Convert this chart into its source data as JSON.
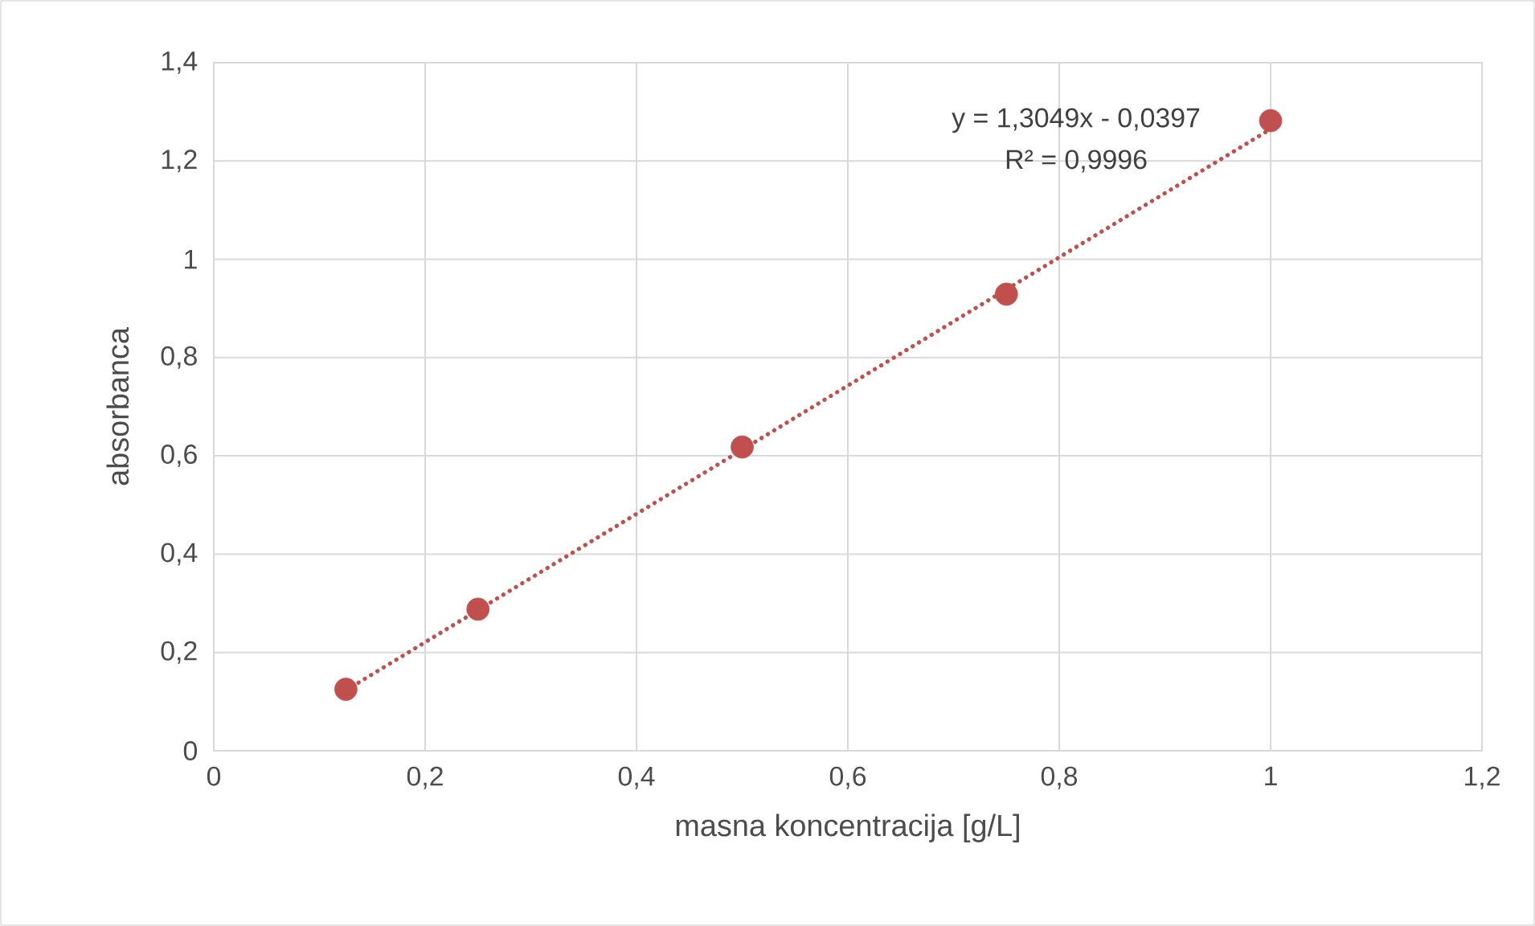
{
  "chart_data": {
    "type": "scatter",
    "xlabel": "masna koncentracija [g/L]",
    "ylabel": "absorbanca",
    "series": [
      {
        "color": "#c0504d",
        "marker": "circle",
        "x": [
          0.125,
          0.25,
          0.5,
          0.75,
          1.0
        ],
        "values": [
          0.125,
          0.288,
          0.618,
          0.929,
          1.282
        ]
      },
      {
        "type": "line",
        "color": "#c0504d",
        "marker": "none",
        "line_style": "dotted",
        "x": [
          0.125,
          1.0
        ],
        "values": [
          0.123,
          1.265
        ]
      }
    ],
    "annotations": [
      "y = 1,3049x - 0,0397",
      "R² = 0,9996"
    ],
    "xlim": [
      0,
      1.2
    ],
    "ylim": [
      0,
      1.4
    ],
    "xticks": [
      0,
      {
        "value": 0.2,
        "label": "0,2"
      },
      {
        "value": 0.4,
        "label": "0,4"
      },
      {
        "value": 0.6,
        "label": "0,6"
      },
      {
        "value": 0.8,
        "label": "0,8"
      },
      1,
      {
        "value": 1.2,
        "label": "1,2"
      }
    ],
    "yticks": [
      0,
      {
        "value": 0.2,
        "label": "0,2"
      },
      {
        "value": 0.4,
        "label": "0,4"
      },
      {
        "value": 0.6,
        "label": "0,6"
      },
      {
        "value": 0.8,
        "label": "0,8"
      },
      1,
      {
        "value": 1.2,
        "label": "1,2"
      },
      {
        "value": 1.4,
        "label": "1,4"
      }
    ],
    "grid": true
  }
}
